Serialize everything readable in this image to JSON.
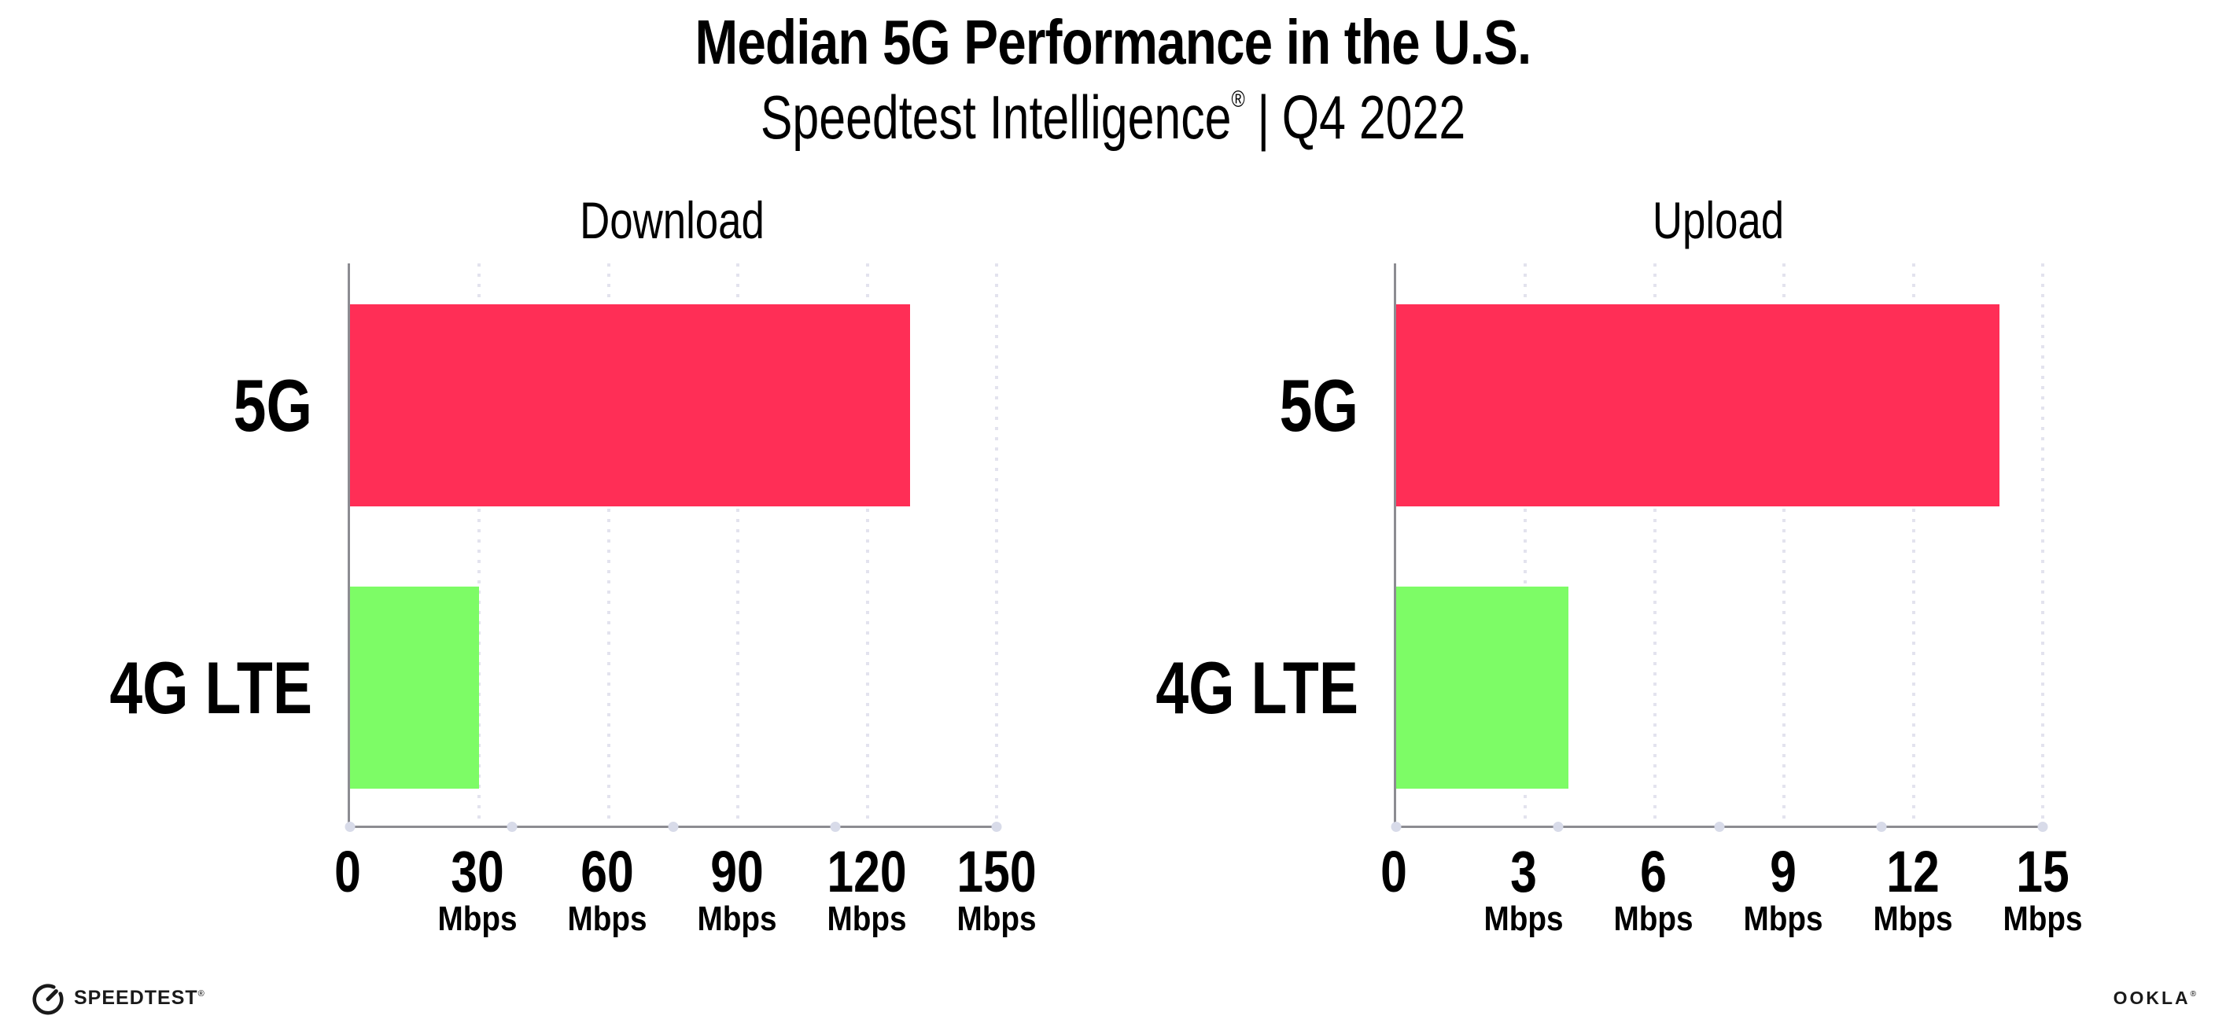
{
  "header": {
    "title": "Median 5G Performance in the U.S.",
    "subtitle_brand": "Speedtest Intelligence",
    "subtitle_reg": "®",
    "subtitle_sep": "|",
    "subtitle_period": "Q4 2022",
    "subtitle_full": "Speedtest Intelligence® | Q4 2022"
  },
  "chart_data": [
    {
      "type": "bar",
      "orientation": "horizontal",
      "title": "Download",
      "categories": [
        "5G",
        "4G LTE"
      ],
      "values": [
        130,
        30
      ],
      "unit": "Mbps",
      "xlabel": "",
      "ylabel": "",
      "xlim": [
        0,
        150
      ],
      "xticks": [
        0,
        30,
        60,
        90,
        120,
        150
      ],
      "xtick_unit": "Mbps",
      "bar_colors": [
        "#ff2e56",
        "#7dfc66"
      ],
      "grid": "dotted vertical gridlines at each tick",
      "legend": "none"
    },
    {
      "type": "bar",
      "orientation": "horizontal",
      "title": "Upload",
      "categories": [
        "5G",
        "4G LTE"
      ],
      "values": [
        14,
        4
      ],
      "unit": "Mbps",
      "xlabel": "",
      "ylabel": "",
      "xlim": [
        0,
        15
      ],
      "xticks": [
        0,
        3,
        6,
        9,
        12,
        15
      ],
      "xtick_unit": "Mbps",
      "bar_colors": [
        "#ff2e56",
        "#7dfc66"
      ],
      "grid": "dotted vertical gridlines at each tick",
      "legend": "none"
    }
  ],
  "footer": {
    "speedtest_logo_text": "SPEEDTEST",
    "speedtest_reg": "®",
    "ookla_logo_text": "OOKLA",
    "ookla_reg": "®"
  },
  "icons": {
    "speedtest_logo_icon": "speedtest-gauge-icon"
  },
  "colors": {
    "bar_5g": "#ff2e56",
    "bar_4g_lte": "#7dfc66",
    "axis": "#8c8c92",
    "gridline": "#e3e3ee",
    "axis_quarter_dot": "#d8dbe9",
    "text": "#000000",
    "background": "#ffffff"
  }
}
